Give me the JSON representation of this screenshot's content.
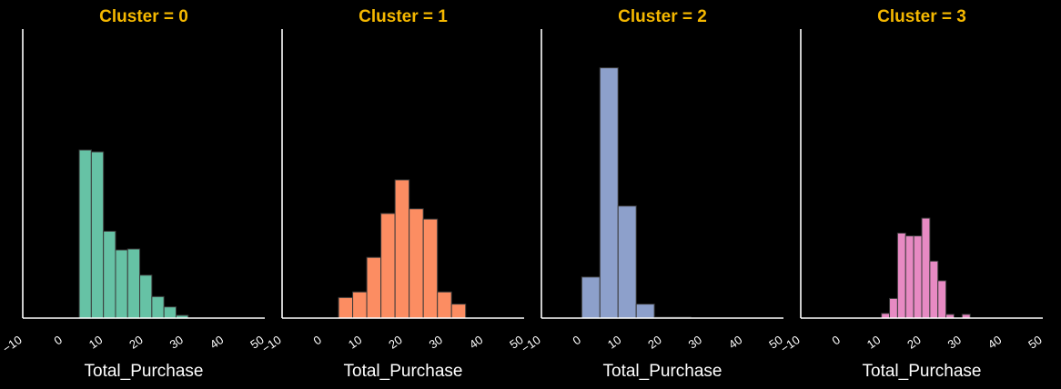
{
  "chart_data": [
    {
      "type": "bar",
      "title": "Cluster = 0",
      "xlabel": "Total_Purchase",
      "ylabel": "",
      "xlim": [
        -10,
        50
      ],
      "x_ticks": [
        -10,
        0,
        10,
        20,
        30,
        40,
        50
      ],
      "bin_edges": [
        4,
        7,
        10,
        13,
        16,
        19,
        22,
        25,
        28,
        31
      ],
      "values": [
        180,
        178,
        93,
        73,
        74,
        46,
        23,
        12,
        3
      ],
      "color": "#66c2a5"
    },
    {
      "type": "bar",
      "title": "Cluster = 1",
      "xlabel": "Total_Purchase",
      "ylabel": "",
      "xlim": [
        -10,
        50
      ],
      "x_ticks": [
        -10,
        0,
        10,
        20,
        30,
        40,
        50
      ],
      "bin_edges": [
        4,
        7.5,
        11,
        14.5,
        18,
        21.5,
        25,
        28.5,
        32,
        35.5
      ],
      "values": [
        22,
        28,
        65,
        112,
        148,
        117,
        106,
        28,
        15
      ],
      "color": "#fc8d62"
    },
    {
      "type": "bar",
      "title": "Cluster = 2",
      "xlabel": "Total_Purchase",
      "ylabel": "",
      "xlim": [
        -10,
        50
      ],
      "x_ticks": [
        -10,
        0,
        10,
        20,
        30,
        40,
        50
      ],
      "bin_edges": [
        0,
        4.5,
        9,
        13.5,
        18,
        22.5,
        27
      ],
      "values": [
        44,
        268,
        120,
        15,
        1,
        1
      ],
      "color": "#8da0cb"
    },
    {
      "type": "bar",
      "title": "Cluster = 3",
      "xlabel": "Total_Purchase",
      "ylabel": "",
      "xlim": [
        -10,
        50
      ],
      "x_ticks": [
        -10,
        0,
        10,
        20,
        30,
        40,
        50
      ],
      "bin_edges": [
        10,
        12,
        14,
        16,
        18,
        20,
        22,
        24,
        26,
        28,
        30,
        32,
        34
      ],
      "values": [
        5,
        21,
        91,
        88,
        88,
        107,
        61,
        40,
        4,
        0,
        4,
        0
      ],
      "color": "#e78ac3"
    }
  ]
}
